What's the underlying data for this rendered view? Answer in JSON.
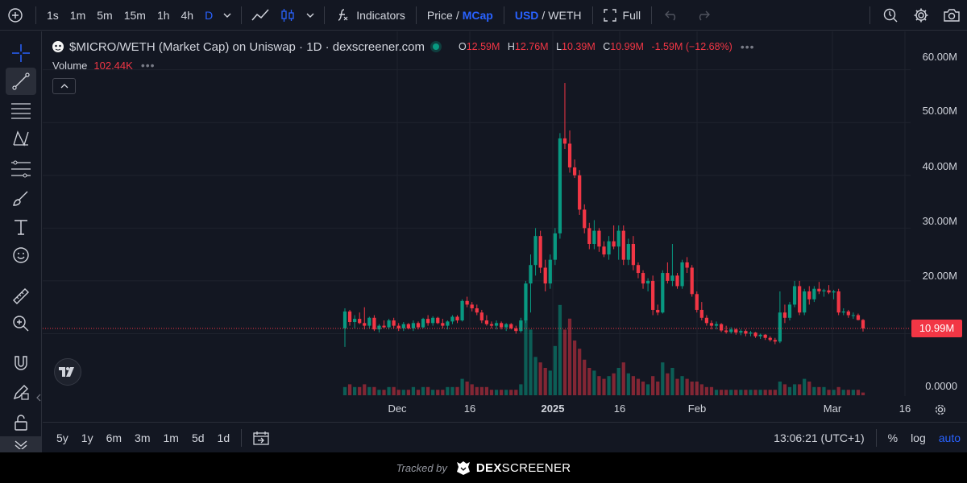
{
  "toolbar": {
    "intervals": [
      "1s",
      "1m",
      "5m",
      "15m",
      "1h",
      "4h",
      "D"
    ],
    "active_interval": "D",
    "indicators_label": "Indicators",
    "price_label": "Price",
    "mcap_label": "MCap",
    "usd_label": "USD",
    "weth_label": "WETH",
    "full_label": "Full"
  },
  "legend": {
    "symbol": "$MICRO/WETH (Market Cap) on Uniswap · 1D · dexscreener.com",
    "open_key": "O",
    "open": "12.59M",
    "high_key": "H",
    "high": "12.76M",
    "low_key": "L",
    "low": "10.39M",
    "close_key": "C",
    "close": "10.99M",
    "change": "-1.59M (−12.68%)",
    "volume_label": "Volume",
    "volume": "102.44K"
  },
  "price_axis": {
    "ticks": [
      "60.00M",
      "50.00M",
      "40.00M",
      "30.00M",
      "20.00M",
      "0.0000"
    ],
    "last_price": "10.99M"
  },
  "time_axis": {
    "ticks": [
      "Dec",
      "16",
      "2025",
      "16",
      "Feb",
      "Mar",
      "16"
    ]
  },
  "bottom": {
    "ranges": [
      "5y",
      "1y",
      "6m",
      "3m",
      "1m",
      "5d",
      "1d"
    ],
    "clock": "13:06:21 (UTC+1)",
    "percent_label": "%",
    "log_label": "log",
    "auto_label": "auto"
  },
  "footer": {
    "tracked_by": "Tracked by",
    "brand_bold": "DEX",
    "brand_rest": "SCREENER"
  },
  "colors": {
    "up": "#089981",
    "down": "#f23645",
    "accent": "#2962ff",
    "background": "#131722"
  },
  "chart_data": {
    "type": "candlestick",
    "price_unit": "market cap (M)",
    "ylim": [
      0,
      63
    ],
    "candles": [
      [
        11.0,
        14.8,
        7.5,
        14.2,
        3
      ],
      [
        14.2,
        14.5,
        11.5,
        12.2,
        4
      ],
      [
        12.2,
        13.5,
        11.0,
        12.8,
        3
      ],
      [
        12.8,
        14.0,
        11.8,
        12.0,
        3
      ],
      [
        12.0,
        15.0,
        10.8,
        11.5,
        4
      ],
      [
        11.5,
        13.2,
        11.0,
        13.0,
        3
      ],
      [
        13.0,
        13.5,
        10.5,
        10.8,
        3
      ],
      [
        10.8,
        11.8,
        10.2,
        11.5,
        2
      ],
      [
        11.5,
        12.5,
        11.0,
        11.2,
        2
      ],
      [
        11.2,
        12.8,
        10.8,
        12.5,
        3
      ],
      [
        12.5,
        13.0,
        11.0,
        11.5,
        3
      ],
      [
        11.5,
        12.0,
        10.5,
        11.0,
        2
      ],
      [
        11.0,
        12.2,
        10.5,
        11.8,
        2
      ],
      [
        11.8,
        12.0,
        10.8,
        11.0,
        2
      ],
      [
        11.0,
        12.5,
        10.5,
        12.0,
        3
      ],
      [
        12.0,
        12.3,
        10.8,
        11.2,
        2
      ],
      [
        11.2,
        13.0,
        11.0,
        12.8,
        3
      ],
      [
        12.8,
        13.5,
        11.5,
        12.0,
        3
      ],
      [
        12.0,
        13.3,
        11.5,
        13.0,
        2
      ],
      [
        13.0,
        13.2,
        11.8,
        12.0,
        2
      ],
      [
        12.0,
        12.8,
        11.0,
        11.5,
        2
      ],
      [
        11.5,
        12.5,
        10.8,
        12.3,
        3
      ],
      [
        12.3,
        13.5,
        11.8,
        13.2,
        3
      ],
      [
        13.2,
        13.5,
        12.0,
        12.5,
        3
      ],
      [
        12.5,
        16.5,
        12.3,
        16.2,
        6
      ],
      [
        16.2,
        17.0,
        15.0,
        15.5,
        5
      ],
      [
        15.5,
        16.0,
        14.2,
        14.8,
        4
      ],
      [
        14.8,
        15.5,
        13.5,
        14.0,
        3
      ],
      [
        14.0,
        14.5,
        12.0,
        12.5,
        3
      ],
      [
        12.5,
        13.5,
        11.5,
        11.8,
        3
      ],
      [
        11.8,
        12.3,
        11.0,
        11.5,
        2
      ],
      [
        11.5,
        12.5,
        10.8,
        12.0,
        2
      ],
      [
        12.0,
        12.3,
        10.8,
        11.2,
        2
      ],
      [
        11.2,
        12.0,
        10.5,
        11.8,
        2
      ],
      [
        11.8,
        12.0,
        10.8,
        11.0,
        2
      ],
      [
        11.0,
        11.5,
        10.0,
        10.5,
        2
      ],
      [
        10.5,
        13.0,
        10.2,
        12.5,
        4
      ],
      [
        12.5,
        20.0,
        12.0,
        19.5,
        28
      ],
      [
        19.5,
        25.0,
        14.0,
        23.0,
        24
      ],
      [
        23.0,
        30.0,
        21.0,
        28.5,
        14
      ],
      [
        28.5,
        29.5,
        21.5,
        22.5,
        12
      ],
      [
        22.5,
        24.0,
        18.0,
        19.5,
        10
      ],
      [
        19.5,
        25.0,
        18.5,
        24.0,
        9
      ],
      [
        24.0,
        30.0,
        23.0,
        29.0,
        18
      ],
      [
        29.0,
        48.0,
        28.0,
        47.0,
        33
      ],
      [
        47.0,
        57.5,
        45.0,
        46.0,
        24
      ],
      [
        46.0,
        48.5,
        40.5,
        41.5,
        28
      ],
      [
        41.5,
        43.0,
        39.5,
        40.0,
        20
      ],
      [
        40.0,
        41.0,
        32.5,
        33.5,
        17
      ],
      [
        33.5,
        34.5,
        29.0,
        30.0,
        13
      ],
      [
        30.0,
        31.0,
        26.0,
        27.0,
        10
      ],
      [
        27.0,
        31.5,
        26.0,
        29.5,
        9
      ],
      [
        29.5,
        30.0,
        25.5,
        26.5,
        7
      ],
      [
        26.5,
        27.5,
        24.5,
        25.0,
        6
      ],
      [
        25.0,
        28.5,
        24.0,
        27.5,
        7
      ],
      [
        27.5,
        30.5,
        26.0,
        26.5,
        8
      ],
      [
        26.5,
        30.5,
        24.0,
        29.5,
        10
      ],
      [
        29.5,
        30.5,
        23.0,
        24.0,
        12
      ],
      [
        24.0,
        28.0,
        23.0,
        27.0,
        8
      ],
      [
        27.0,
        28.5,
        22.0,
        23.0,
        7
      ],
      [
        23.0,
        23.5,
        20.5,
        21.5,
        6
      ],
      [
        21.5,
        22.0,
        18.5,
        19.5,
        5
      ],
      [
        19.5,
        20.5,
        18.0,
        20.0,
        4
      ],
      [
        20.0,
        21.0,
        13.5,
        14.5,
        7
      ],
      [
        14.5,
        15.5,
        13.5,
        14.0,
        5
      ],
      [
        14.0,
        22.0,
        13.8,
        21.5,
        12
      ],
      [
        21.5,
        23.5,
        19.5,
        20.0,
        8
      ],
      [
        20.0,
        27.0,
        19.0,
        21.0,
        10
      ],
      [
        21.0,
        21.5,
        18.5,
        19.0,
        6
      ],
      [
        19.0,
        24.0,
        18.5,
        23.5,
        7
      ],
      [
        23.5,
        24.5,
        21.5,
        22.5,
        6
      ],
      [
        22.5,
        23.0,
        17.0,
        17.5,
        5
      ],
      [
        17.5,
        18.0,
        14.0,
        14.5,
        5
      ],
      [
        14.5,
        16.0,
        12.5,
        13.0,
        4
      ],
      [
        13.0,
        13.5,
        11.5,
        12.0,
        3
      ],
      [
        12.0,
        12.5,
        10.8,
        11.5,
        3
      ],
      [
        11.5,
        12.3,
        10.8,
        11.8,
        2
      ],
      [
        11.8,
        12.0,
        10.3,
        10.6,
        2
      ],
      [
        10.6,
        11.5,
        10.0,
        10.3,
        2
      ],
      [
        10.3,
        11.2,
        10.0,
        10.8,
        2
      ],
      [
        10.8,
        11.0,
        9.8,
        10.2,
        2
      ],
      [
        10.2,
        10.8,
        9.7,
        10.5,
        2
      ],
      [
        10.5,
        10.8,
        9.5,
        10.0,
        2
      ],
      [
        10.0,
        10.5,
        9.5,
        10.2,
        2
      ],
      [
        10.2,
        10.3,
        9.2,
        9.5,
        2
      ],
      [
        9.5,
        10.0,
        9.0,
        9.8,
        2
      ],
      [
        9.8,
        9.9,
        8.8,
        9.2,
        2
      ],
      [
        9.2,
        9.5,
        8.5,
        8.8,
        2
      ],
      [
        8.8,
        9.2,
        8.0,
        8.5,
        2
      ],
      [
        8.5,
        18.0,
        8.2,
        14.0,
        5
      ],
      [
        14.0,
        15.5,
        12.0,
        13.0,
        4
      ],
      [
        13.0,
        16.0,
        12.5,
        15.5,
        3
      ],
      [
        15.5,
        20.0,
        15.0,
        19.0,
        4
      ],
      [
        19.0,
        20.0,
        13.5,
        14.0,
        4
      ],
      [
        14.0,
        18.5,
        13.5,
        18.0,
        6
      ],
      [
        18.0,
        19.0,
        15.5,
        16.5,
        5
      ],
      [
        16.5,
        19.0,
        16.0,
        18.5,
        3
      ],
      [
        18.5,
        19.8,
        17.5,
        18.0,
        3
      ],
      [
        18.0,
        18.5,
        17.0,
        18.2,
        3
      ],
      [
        18.2,
        19.2,
        17.5,
        17.8,
        2
      ],
      [
        17.8,
        18.3,
        16.5,
        18.0,
        2
      ],
      [
        18.0,
        18.5,
        13.5,
        14.0,
        3
      ],
      [
        14.0,
        14.8,
        13.5,
        14.2,
        2
      ],
      [
        14.2,
        14.5,
        13.0,
        13.5,
        2
      ],
      [
        13.5,
        14.0,
        12.8,
        13.5,
        2
      ],
      [
        13.5,
        13.8,
        12.5,
        12.59,
        2
      ],
      [
        12.59,
        12.76,
        10.39,
        10.99,
        1
      ]
    ],
    "candle_fields": [
      "open",
      "high",
      "low",
      "close",
      "volume_rel"
    ],
    "volume_last": "102.44K"
  }
}
